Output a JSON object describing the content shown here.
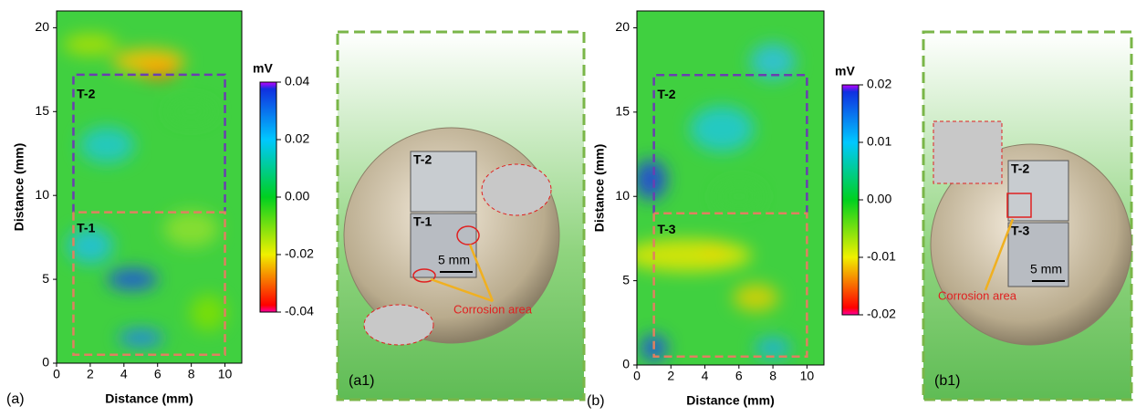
{
  "figure": {
    "panels": [
      {
        "label": "(a)",
        "x_label": "Distance (mm)",
        "y_label": "Distance (mm)",
        "xlim": [
          0,
          11
        ],
        "ylim": [
          0,
          21
        ],
        "xticks": [
          0,
          2,
          4,
          6,
          8,
          10
        ],
        "yticks": [
          0,
          5,
          10,
          15,
          20
        ],
        "colorbar": {
          "unit": "mV",
          "lim": [
            -0.04,
            0.04
          ],
          "ticks": [
            0.04,
            0.02,
            {
              "value": 0,
              "label": "0.00"
            },
            -0.02,
            -0.04
          ]
        },
        "regions": [
          "T-2",
          "T-1"
        ]
      },
      {
        "label": "(a1)",
        "annotations": [
          "T-2",
          "T-1",
          "5 mm",
          "Corrosion area"
        ]
      },
      {
        "label": "(b)",
        "x_label": "Distance (mm)",
        "y_label": "Distance (mm)",
        "xlim": [
          0,
          11
        ],
        "ylim": [
          0,
          21
        ],
        "xticks": [
          0,
          2,
          4,
          6,
          8,
          10
        ],
        "yticks": [
          0,
          5,
          10,
          15,
          20
        ],
        "colorbar": {
          "unit": "mV",
          "lim": [
            -0.02,
            0.02
          ],
          "ticks": [
            0.02,
            0.01,
            {
              "value": 0,
              "label": "0.00"
            },
            -0.01,
            -0.02
          ]
        },
        "regions": [
          "T-2",
          "T-3"
        ]
      },
      {
        "label": "(b1)",
        "annotations": [
          "T-2",
          "T-3",
          "5 mm",
          "Corrosion area"
        ]
      }
    ]
  }
}
